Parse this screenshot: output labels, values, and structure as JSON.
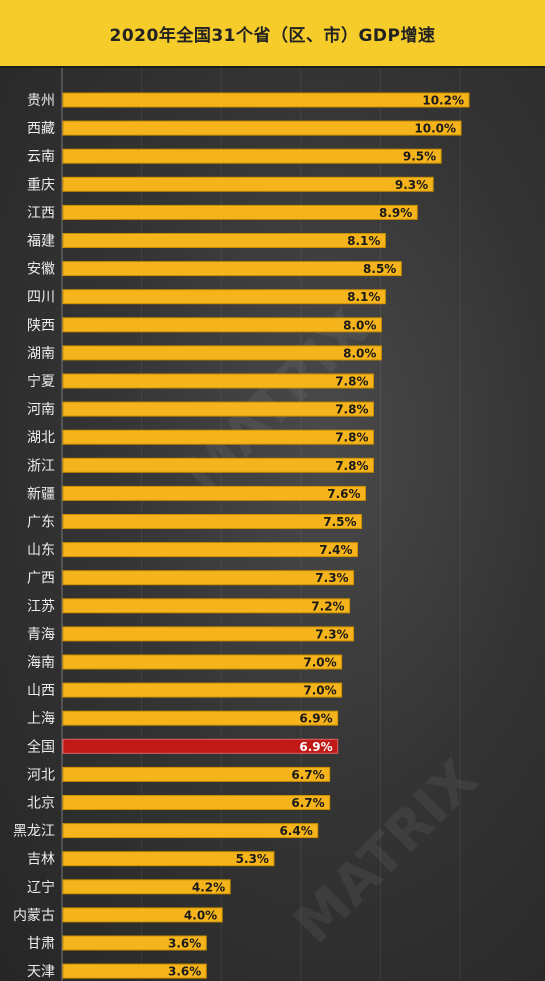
{
  "header": {
    "title": "2020年全国31个省（区、市）GDP增速"
  },
  "colors": {
    "bar": "#f6b41c",
    "highlight": "#c01a18",
    "header_bg": "#f6cc2b"
  },
  "chart_data": {
    "type": "bar",
    "orientation": "horizontal",
    "title": "2020年全国31个省（区、市）GDP增速",
    "unit": "%",
    "highlight_category": "全国",
    "categories": [
      "贵州",
      "西藏",
      "云南",
      "重庆",
      "江西",
      "福建",
      "安徽",
      "四川",
      "陕西",
      "湖南",
      "宁夏",
      "河南",
      "湖北",
      "浙江",
      "新疆",
      "广东",
      "山东",
      "广西",
      "江苏",
      "青海",
      "海南",
      "山西",
      "上海",
      "全国",
      "河北",
      "北京",
      "黑龙江",
      "吉林",
      "辽宁",
      "内蒙古",
      "甘肃",
      "天津"
    ],
    "values": [
      10.2,
      10.0,
      9.5,
      9.3,
      8.9,
      8.1,
      8.5,
      8.1,
      8.0,
      8.0,
      7.8,
      7.8,
      7.8,
      7.8,
      7.6,
      7.5,
      7.4,
      7.3,
      7.2,
      7.3,
      7.0,
      7.0,
      6.9,
      6.9,
      6.7,
      6.7,
      6.4,
      5.3,
      4.2,
      4.0,
      3.6,
      3.6
    ],
    "labels": [
      "10.2%",
      "10.0%",
      "9.5%",
      "9.3%",
      "8.9%",
      "8.1%",
      "8.5%",
      "8.1%",
      "8.0%",
      "8.0%",
      "7.8%",
      "7.8%",
      "7.8%",
      "7.8%",
      "7.6%",
      "7.5%",
      "7.4%",
      "7.3%",
      "7.2%",
      "7.3%",
      "7.0%",
      "7.0%",
      "6.9%",
      "6.9%",
      "6.7%",
      "6.7%",
      "6.4%",
      "5.3%",
      "4.2%",
      "4.0%",
      "3.6%",
      "3.6%"
    ],
    "xlim": [
      0,
      10.2
    ],
    "grid": true
  }
}
